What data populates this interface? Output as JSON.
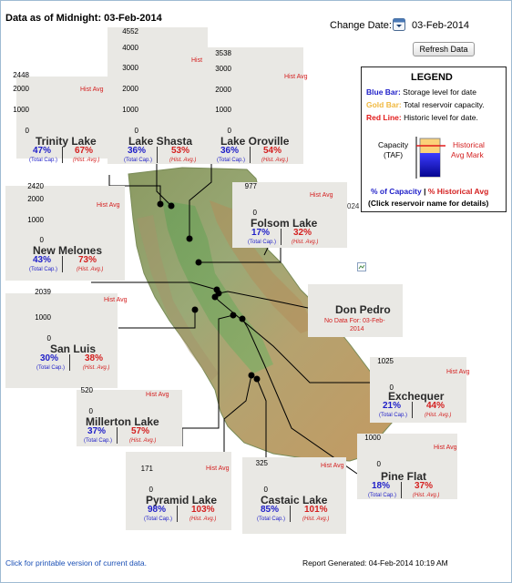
{
  "header": {
    "data_as_of": "Data as of Midnight: 03-Feb-2014",
    "change_date_label": "Change Date:",
    "selected_date": "03-Feb-2014",
    "refresh_button": "Refresh Data",
    "stray_text": "024"
  },
  "legend": {
    "title": "LEGEND",
    "blue_bar_key": "Blue Bar:",
    "blue_bar_desc": "Storage level for date",
    "gold_bar_key": "Gold Bar:",
    "gold_bar_desc": "Total reservoir capacity.",
    "red_line_key": "Red Line:",
    "red_line_desc": "Historic level for date.",
    "capacity_label": "Capacity",
    "capacity_unit": "(TAF)",
    "historical_label_1": "Historical",
    "historical_label_2": "Avg Mark",
    "pct_capacity": "% of Capacity",
    "pct_hist": "% Historical Avg",
    "click_note": "(Click reservoir name for details)"
  },
  "common": {
    "hist_avg": "Hist Avg",
    "total_cap": "(Total Cap.)",
    "hist_avg_paren": "(Hist. Avg.)"
  },
  "reservoirs": [
    {
      "name": "Trinity Lake",
      "capacity": 2448,
      "ticks": [
        "2448",
        "2000",
        "1000",
        "0"
      ],
      "pct_capacity": "47%",
      "pct_hist_avg": "67%"
    },
    {
      "name": "Lake Shasta",
      "capacity": 4552,
      "ticks": [
        "4552",
        "4000",
        "3000",
        "2000",
        "1000",
        "0"
      ],
      "pct_capacity": "36%",
      "pct_hist_avg": "53%"
    },
    {
      "name": "Lake Oroville",
      "capacity": 3538,
      "ticks": [
        "3538",
        "3000",
        "2000",
        "1000",
        "0"
      ],
      "pct_capacity": "36%",
      "pct_hist_avg": "54%"
    },
    {
      "name": "Folsom Lake",
      "capacity": 977,
      "ticks": [
        "977",
        "0"
      ],
      "pct_capacity": "17%",
      "pct_hist_avg": "32%"
    },
    {
      "name": "New Melones",
      "capacity": 2420,
      "ticks": [
        "2420",
        "2000",
        "1000",
        "0"
      ],
      "pct_capacity": "43%",
      "pct_hist_avg": "73%"
    },
    {
      "name": "San Luis",
      "capacity": 2039,
      "ticks": [
        "2039",
        "1000",
        "0"
      ],
      "pct_capacity": "30%",
      "pct_hist_avg": "38%"
    },
    {
      "name": "Millerton Lake",
      "capacity": 520,
      "ticks": [
        "520",
        "0"
      ],
      "pct_capacity": "37%",
      "pct_hist_avg": "57%"
    },
    {
      "name": "Exchequer",
      "capacity": 1025,
      "ticks": [
        "1025",
        "0"
      ],
      "pct_capacity": "21%",
      "pct_hist_avg": "44%"
    },
    {
      "name": "Pine Flat",
      "capacity": 1000,
      "ticks": [
        "1000",
        "0"
      ],
      "pct_capacity": "18%",
      "pct_hist_avg": "37%"
    },
    {
      "name": "Pyramid Lake",
      "capacity": 171,
      "ticks": [
        "171",
        "0"
      ],
      "pct_capacity": "98%",
      "pct_hist_avg": "103%"
    },
    {
      "name": "Castaic Lake",
      "capacity": 325,
      "ticks": [
        "325",
        "0"
      ],
      "pct_capacity": "85%",
      "pct_hist_avg": "101%"
    }
  ],
  "don_pedro": {
    "name": "Don Pedro",
    "no_data_1": "No Data For: 03-Feb-",
    "no_data_2": "2014"
  },
  "footer": {
    "printable_link": "Click for printable version of current data.",
    "report_generated": "Report Generated: 04-Feb-2014 10:19 AM"
  },
  "colors": {
    "gold": "#fbd279",
    "blue": "#0d0da8",
    "red_line": "#e21b1b",
    "card_bg": "#e9e8e4",
    "capacity_blue": "#1e1ec8",
    "hist_red": "#d42020"
  }
}
